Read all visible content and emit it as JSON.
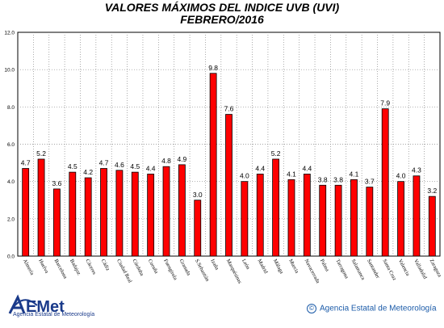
{
  "chart_data": {
    "type": "bar",
    "title": "VALORES MÁXIMOS DEL INDICE UVB (UVI)",
    "subtitle": "FEBRERO/2016",
    "categories": [
      "Almería",
      "Huelva",
      "Barcelona",
      "Badajoz",
      "Cáceres",
      "Cádiz",
      "Ciudad Real",
      "Córdoba",
      "Coruña",
      "Fuengirola",
      "Granada",
      "S.Sebastián",
      "Izaña",
      "Marquésinas",
      "León",
      "Madrid",
      "Málaga",
      "Murcia",
      "Navacerrada",
      "Palma",
      "Tarragona",
      "Salamanca",
      "Santander",
      "Santa Cruz",
      "Valencia",
      "Valladolid",
      "Zaragoza"
    ],
    "values": [
      4.7,
      5.2,
      3.6,
      4.5,
      4.2,
      4.7,
      4.6,
      4.5,
      4.4,
      4.8,
      4.9,
      3.0,
      9.8,
      7.6,
      4.0,
      4.4,
      5.2,
      4.1,
      4.4,
      3.8,
      3.8,
      4.1,
      3.7,
      7.9,
      4.0,
      4.3,
      3.2
    ],
    "value_labels": [
      "4.7",
      "5.2",
      "3.6",
      "4.5",
      "4.2",
      "4.7",
      "4.6",
      "4.5",
      "4.4",
      "4.8",
      "4.9",
      "3.0",
      "9.8",
      "7.6",
      "4.0",
      "4.4",
      "5.2",
      "4.1",
      "4.4",
      "3.8",
      "3.8",
      "4.1",
      "3.7",
      "7.9",
      "4.0",
      "4.3",
      "3.2"
    ],
    "ylim": [
      0,
      12
    ],
    "yticks": [
      "0.0",
      "2.0",
      "4.0",
      "6.0",
      "8.0",
      "10.0",
      "12.0"
    ],
    "ytick_values": [
      0,
      2,
      4,
      6,
      8,
      10,
      12
    ],
    "grid": true,
    "bar_color": "#ff0000",
    "grid_color": "#888888",
    "xlabel": "",
    "ylabel": ""
  },
  "footer": {
    "logo_text": "AEMet",
    "logo_subtitle": "Agencia Estatal de Meteorología",
    "copyright": "Agencia Estatal de Meteorología",
    "copyright_icon": "copyright-icon"
  }
}
